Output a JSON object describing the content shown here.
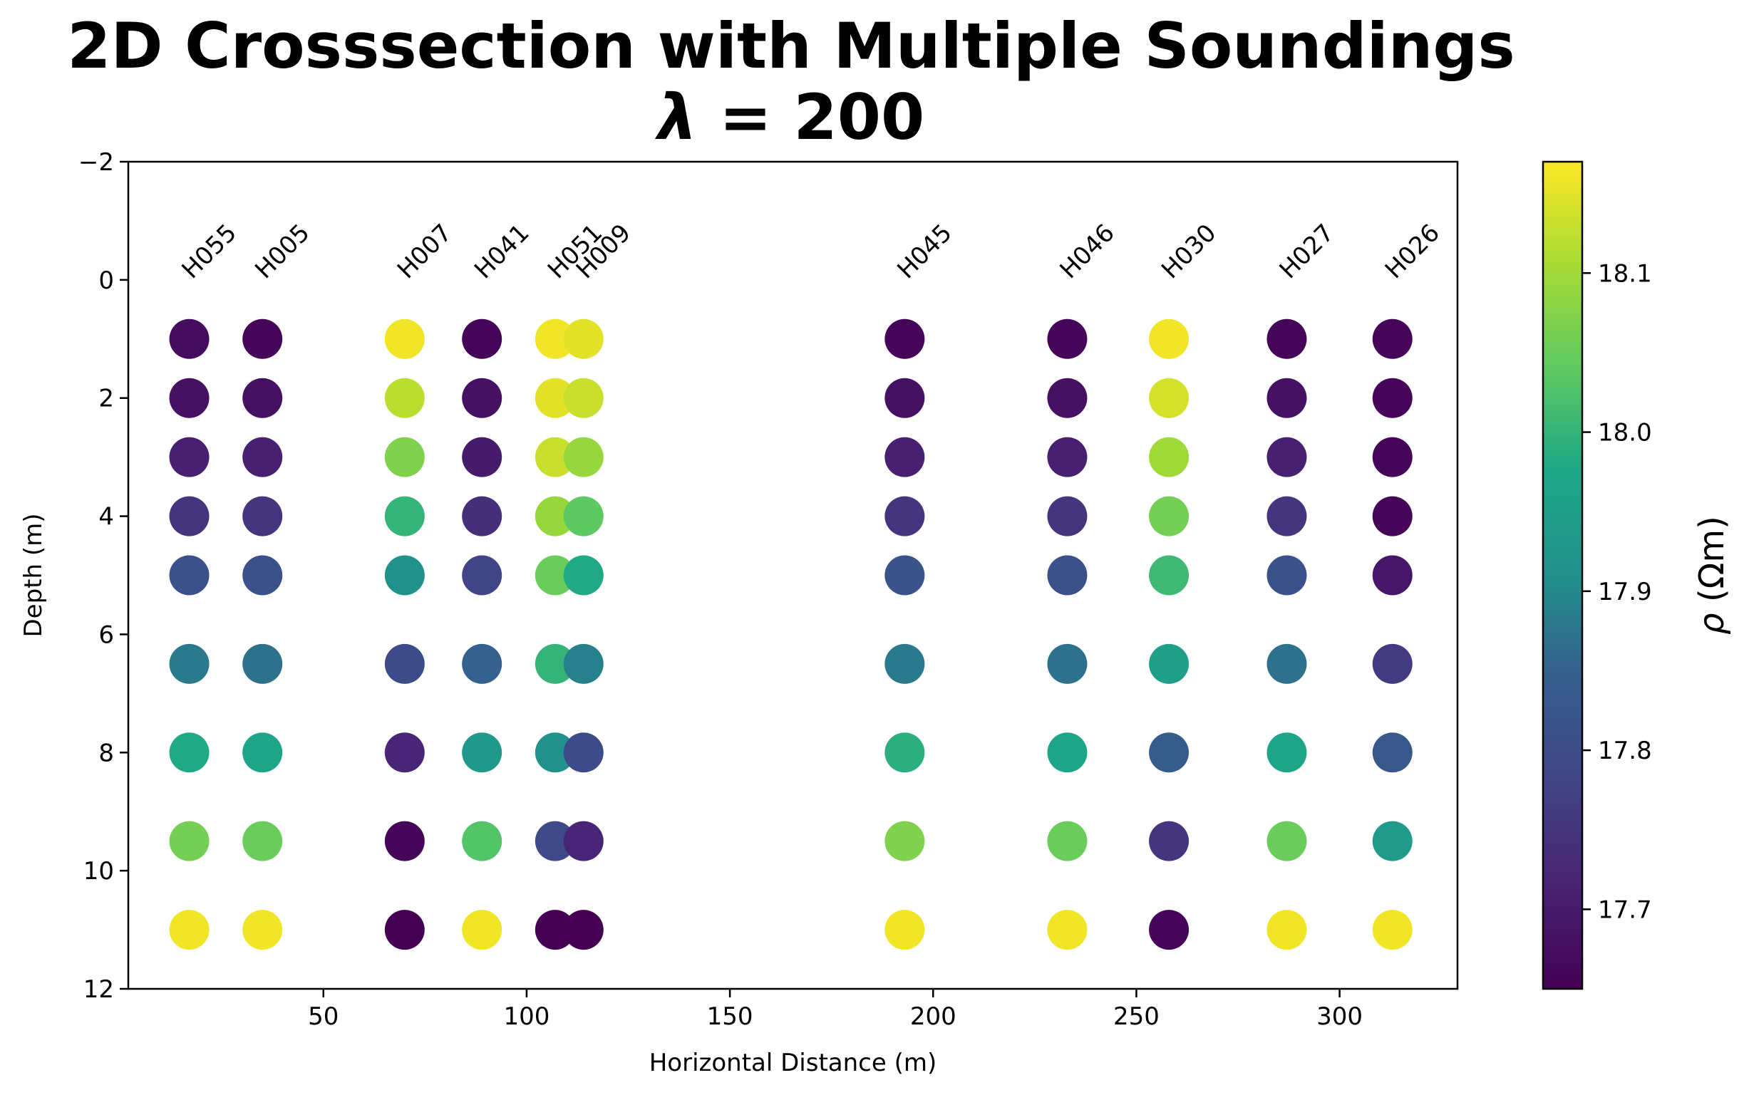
{
  "chart_data": {
    "type": "scatter",
    "title_line1": "2D Crosssection with Multiple Soundings",
    "title_lambda_symbol": "λ",
    "title_lambda_value": "= 200",
    "xlabel": "Horizontal Distance (m)",
    "ylabel": "Depth (m)",
    "xlim": [
      2,
      329
    ],
    "ylim": [
      12,
      -2
    ],
    "x_ticks": [
      50,
      100,
      150,
      200,
      250,
      300
    ],
    "x_tick_labels": [
      "50",
      "100",
      "150",
      "200",
      "250",
      "300"
    ],
    "y_ticks": [
      -2,
      0,
      2,
      4,
      6,
      8,
      10,
      12
    ],
    "y_tick_labels": [
      "−2",
      "0",
      "2",
      "4",
      "6",
      "8",
      "10",
      "12"
    ],
    "colorbar": {
      "label": "ρ (Ωm)",
      "label_symbol": "ρ",
      "label_unit": "(Ωm)",
      "range": [
        17.65,
        18.17
      ],
      "ticks": [
        17.7,
        17.8,
        17.9,
        18.0,
        18.1
      ],
      "tick_labels": [
        "17.7",
        "17.8",
        "17.9",
        "18.0",
        "18.1"
      ],
      "colormap": "viridis"
    },
    "depths": [
      1,
      2,
      3,
      4,
      5,
      6.5,
      8,
      9.5,
      11
    ],
    "soundings": [
      {
        "name": "H055",
        "x": 17,
        "rho": [
          17.67,
          17.68,
          17.71,
          17.75,
          17.81,
          17.88,
          17.98,
          18.06,
          18.16
        ]
      },
      {
        "name": "H005",
        "x": 35,
        "rho": [
          17.66,
          17.68,
          17.71,
          17.75,
          17.81,
          17.87,
          17.97,
          18.05,
          18.16
        ]
      },
      {
        "name": "H007",
        "x": 70,
        "rho": [
          18.16,
          18.12,
          18.07,
          18.0,
          17.91,
          17.8,
          17.72,
          17.66,
          17.65
        ]
      },
      {
        "name": "H041",
        "x": 89,
        "rho": [
          17.66,
          17.68,
          17.7,
          17.74,
          17.78,
          17.85,
          17.93,
          18.03,
          18.16
        ]
      },
      {
        "name": "H051",
        "x": 107,
        "rho": [
          18.16,
          18.15,
          18.13,
          18.09,
          18.05,
          18.0,
          17.91,
          17.79,
          17.65
        ]
      },
      {
        "name": "H009",
        "x": 114,
        "rho": [
          18.15,
          18.13,
          18.09,
          18.04,
          17.98,
          17.89,
          17.8,
          17.72,
          17.65
        ]
      },
      {
        "name": "H045",
        "x": 193,
        "rho": [
          17.66,
          17.68,
          17.71,
          17.75,
          17.82,
          17.88,
          17.99,
          18.07,
          18.16
        ]
      },
      {
        "name": "H046",
        "x": 233,
        "rho": [
          17.66,
          17.68,
          17.71,
          17.75,
          17.81,
          17.87,
          17.97,
          18.05,
          18.16
        ]
      },
      {
        "name": "H030",
        "x": 258,
        "rho": [
          18.16,
          18.14,
          18.1,
          18.06,
          18.01,
          17.95,
          17.84,
          17.75,
          17.66
        ]
      },
      {
        "name": "H027",
        "x": 287,
        "rho": [
          17.66,
          17.68,
          17.71,
          17.75,
          17.81,
          17.87,
          17.97,
          18.05,
          18.16
        ]
      },
      {
        "name": "H026",
        "x": 313,
        "rho": [
          17.66,
          17.66,
          17.66,
          17.66,
          17.69,
          17.76,
          17.83,
          17.94,
          18.16
        ]
      }
    ]
  }
}
